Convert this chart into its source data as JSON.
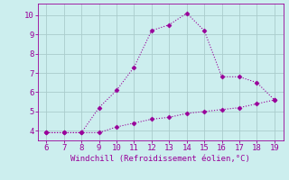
{
  "xlabel": "Windchill (Refroidissement éolien,°C)",
  "x_main": [
    6,
    7,
    8,
    9,
    10,
    11,
    12,
    13,
    14,
    15,
    16,
    17,
    18,
    19
  ],
  "y_main": [
    3.9,
    3.9,
    3.9,
    5.2,
    6.1,
    7.3,
    9.2,
    9.5,
    10.1,
    9.2,
    6.8,
    6.8,
    6.5,
    5.6
  ],
  "x_line2": [
    6,
    7,
    8,
    9,
    10,
    11,
    12,
    13,
    14,
    15,
    16,
    17,
    18,
    19
  ],
  "y_line2": [
    3.9,
    3.9,
    3.9,
    3.9,
    4.2,
    4.4,
    4.6,
    4.7,
    4.9,
    5.0,
    5.1,
    5.2,
    5.4,
    5.6
  ],
  "line_color": "#990099",
  "bg_color": "#cceeee",
  "grid_color": "#aacccc",
  "axis_label_color": "#990099",
  "tick_color": "#990099",
  "spine_color": "#990099",
  "xlim": [
    5.5,
    19.5
  ],
  "ylim": [
    3.5,
    10.6
  ],
  "xticks": [
    6,
    7,
    8,
    9,
    10,
    11,
    12,
    13,
    14,
    15,
    16,
    17,
    18,
    19
  ],
  "yticks": [
    4,
    5,
    6,
    7,
    8,
    9,
    10
  ],
  "marker": "D",
  "markersize": 2.5,
  "linewidth": 0.8,
  "xlabel_fontsize": 6.5,
  "tick_fontsize": 6.5
}
